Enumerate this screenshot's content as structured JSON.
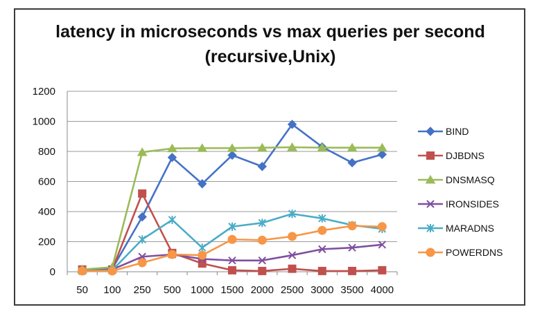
{
  "chart_data": {
    "type": "line",
    "title_lines": [
      "latency in microseconds vs max queries per second",
      "(recursive,Unix)"
    ],
    "xlabel": "",
    "ylabel": "",
    "categories": [
      "50",
      "100",
      "250",
      "500",
      "1000",
      "1500",
      "2000",
      "2500",
      "3000",
      "3500",
      "4000"
    ],
    "ylim": [
      0,
      1200
    ],
    "yticks": [
      0,
      200,
      400,
      600,
      800,
      1000,
      1200
    ],
    "grid": true,
    "legend_position": "right",
    "series": [
      {
        "name": "BIND",
        "color": "#4472C4",
        "marker": "diamond",
        "values": [
          10,
          20,
          365,
          760,
          585,
          775,
          700,
          980,
          830,
          725,
          780
        ]
      },
      {
        "name": "DJBDNS",
        "color": "#C0504D",
        "marker": "square",
        "values": [
          15,
          15,
          520,
          125,
          55,
          10,
          5,
          20,
          5,
          5,
          10
        ]
      },
      {
        "name": "DNSMASQ",
        "color": "#9BBB59",
        "marker": "triangle",
        "values": [
          15,
          30,
          795,
          820,
          822,
          822,
          825,
          828,
          825,
          825,
          825
        ]
      },
      {
        "name": "IRONSIDES",
        "color": "#7F4F9F",
        "marker": "x",
        "values": [
          5,
          15,
          100,
          115,
          85,
          75,
          75,
          110,
          150,
          160,
          180
        ]
      },
      {
        "name": "MARADNS",
        "color": "#4BACC6",
        "marker": "star",
        "values": [
          5,
          10,
          215,
          345,
          160,
          300,
          325,
          385,
          355,
          310,
          285
        ]
      },
      {
        "name": "POWERDNS",
        "color": "#F79646",
        "marker": "circle",
        "values": [
          5,
          5,
          60,
          115,
          110,
          215,
          210,
          235,
          275,
          305,
          300
        ]
      }
    ]
  }
}
